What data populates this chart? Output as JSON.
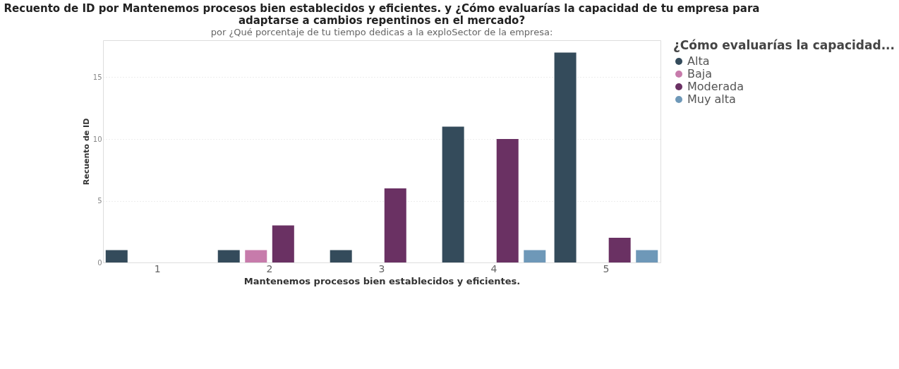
{
  "chart_data": {
    "type": "bar",
    "title": "Recuento de ID por Mantenemos procesos bien establecidos y eficientes. y ¿Cómo evaluarías la capacidad de tu empresa para adaptarse a cambios repentinos en el mercado?",
    "subtitle": "por ¿Qué porcentaje de tu tiempo dedicas a la exploSector de la empresa:",
    "xlabel": "Mantenemos procesos bien establecidos y eficientes.",
    "ylabel": "Recuento de ID",
    "legend_title": "¿Cómo evaluarías la capacidad...",
    "categories": [
      "1",
      "2",
      "3",
      "4",
      "5"
    ],
    "series": [
      {
        "name": "Alta",
        "color": "#344b5b",
        "values": [
          1,
          1,
          1,
          11,
          17
        ]
      },
      {
        "name": "Baja",
        "color": "#c77bab",
        "values": [
          null,
          1,
          null,
          null,
          null
        ]
      },
      {
        "name": "Moderada",
        "color": "#6a3163",
        "values": [
          null,
          3,
          6,
          10,
          2
        ]
      },
      {
        "name": "Muy alta",
        "color": "#6e98b8",
        "values": [
          null,
          null,
          null,
          1,
          1
        ]
      }
    ],
    "ylim": [
      0,
      18
    ],
    "yticks": [
      0,
      5,
      10,
      15
    ],
    "grid": "y",
    "legend": "right"
  }
}
